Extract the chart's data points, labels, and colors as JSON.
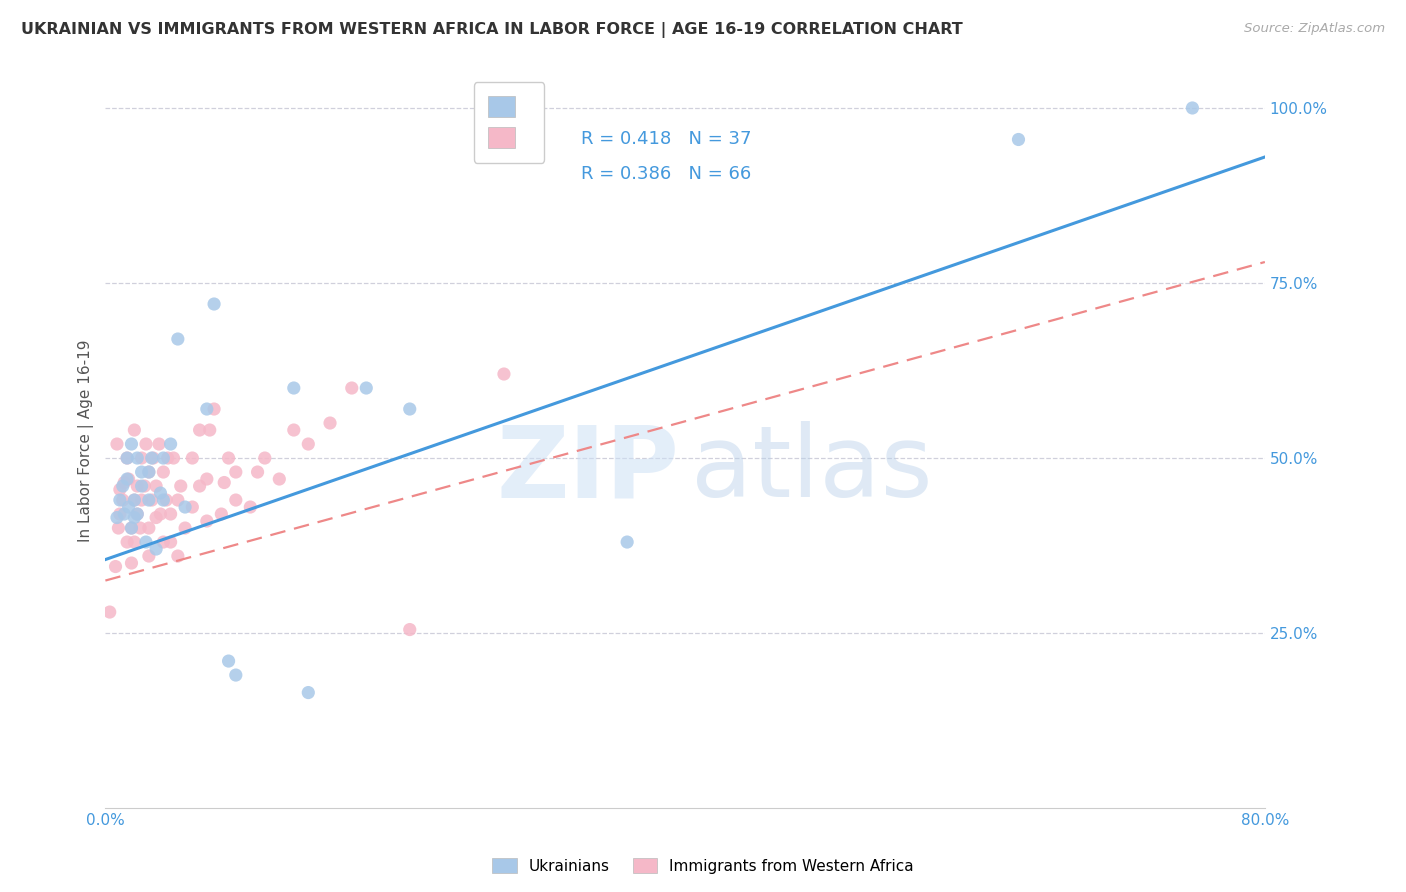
{
  "title": "UKRAINIAN VS IMMIGRANTS FROM WESTERN AFRICA IN LABOR FORCE | AGE 16-19 CORRELATION CHART",
  "source": "Source: ZipAtlas.com",
  "ylabel": "In Labor Force | Age 16-19",
  "xlim": [
    0.0,
    0.8
  ],
  "ylim": [
    0.0,
    1.05
  ],
  "xtick_positions": [
    0.0,
    0.1,
    0.2,
    0.3,
    0.4,
    0.5,
    0.6,
    0.7,
    0.8
  ],
  "xticklabels": [
    "0.0%",
    "",
    "",
    "",
    "",
    "",
    "",
    "",
    "80.0%"
  ],
  "ytick_positions": [
    0.0,
    0.25,
    0.5,
    0.75,
    1.0
  ],
  "yticklabels_right": [
    "",
    "25.0%",
    "50.0%",
    "75.0%",
    "100.0%"
  ],
  "blue_scatter_color": "#a8c8e8",
  "pink_scatter_color": "#f5b8c8",
  "blue_line_color": "#4499dd",
  "pink_line_color": "#ee8888",
  "ukrainians_label": "Ukrainians",
  "immigrants_label": "Immigrants from Western Africa",
  "R_ukrainian": "0.418",
  "N_ukrainian": "37",
  "R_immigrants": "0.386",
  "N_immigrants": "66",
  "legend_color": "#4499dd",
  "grid_color": "#d0d0dc",
  "title_color": "#333333",
  "source_color": "#aaaaaa",
  "axis_label_color": "#555555",
  "axis_tick_color": "#4499dd",
  "blue_line_x0": 0.0,
  "blue_line_y0": 0.355,
  "blue_line_x1": 0.8,
  "blue_line_y1": 0.93,
  "pink_line_x0": 0.0,
  "pink_line_y0": 0.325,
  "pink_line_x1": 0.8,
  "pink_line_y1": 0.78,
  "ukrainian_x": [
    0.008,
    0.01,
    0.012,
    0.013,
    0.015,
    0.015,
    0.016,
    0.018,
    0.018,
    0.02,
    0.02,
    0.022,
    0.022,
    0.025,
    0.025,
    0.028,
    0.03,
    0.03,
    0.032,
    0.035,
    0.038,
    0.04,
    0.04,
    0.045,
    0.05,
    0.055,
    0.07,
    0.075,
    0.085,
    0.09,
    0.13,
    0.14,
    0.18,
    0.21,
    0.36,
    0.63,
    0.75
  ],
  "ukrainian_y": [
    0.415,
    0.44,
    0.46,
    0.42,
    0.5,
    0.47,
    0.43,
    0.4,
    0.52,
    0.415,
    0.44,
    0.42,
    0.5,
    0.46,
    0.48,
    0.38,
    0.44,
    0.48,
    0.5,
    0.37,
    0.45,
    0.5,
    0.44,
    0.52,
    0.67,
    0.43,
    0.57,
    0.72,
    0.21,
    0.19,
    0.6,
    0.165,
    0.6,
    0.57,
    0.38,
    0.955,
    1.0
  ],
  "immigrants_x": [
    0.003,
    0.007,
    0.009,
    0.01,
    0.01,
    0.012,
    0.013,
    0.015,
    0.015,
    0.016,
    0.018,
    0.018,
    0.02,
    0.02,
    0.022,
    0.022,
    0.024,
    0.025,
    0.025,
    0.027,
    0.028,
    0.03,
    0.03,
    0.03,
    0.032,
    0.033,
    0.035,
    0.035,
    0.037,
    0.038,
    0.04,
    0.04,
    0.042,
    0.043,
    0.045,
    0.045,
    0.047,
    0.05,
    0.05,
    0.052,
    0.055,
    0.06,
    0.06,
    0.065,
    0.065,
    0.07,
    0.07,
    0.072,
    0.075,
    0.08,
    0.082,
    0.085,
    0.09,
    0.09,
    0.1,
    0.105,
    0.11,
    0.12,
    0.13,
    0.14,
    0.155,
    0.17,
    0.21,
    0.275,
    0.008,
    0.02
  ],
  "immigrants_y": [
    0.28,
    0.345,
    0.4,
    0.42,
    0.455,
    0.44,
    0.465,
    0.5,
    0.38,
    0.47,
    0.35,
    0.4,
    0.38,
    0.44,
    0.42,
    0.46,
    0.4,
    0.44,
    0.5,
    0.46,
    0.52,
    0.36,
    0.4,
    0.48,
    0.44,
    0.5,
    0.415,
    0.46,
    0.52,
    0.42,
    0.38,
    0.48,
    0.44,
    0.5,
    0.38,
    0.42,
    0.5,
    0.36,
    0.44,
    0.46,
    0.4,
    0.43,
    0.5,
    0.46,
    0.54,
    0.41,
    0.47,
    0.54,
    0.57,
    0.42,
    0.465,
    0.5,
    0.44,
    0.48,
    0.43,
    0.48,
    0.5,
    0.47,
    0.54,
    0.52,
    0.55,
    0.6,
    0.255,
    0.62,
    0.52,
    0.54
  ]
}
